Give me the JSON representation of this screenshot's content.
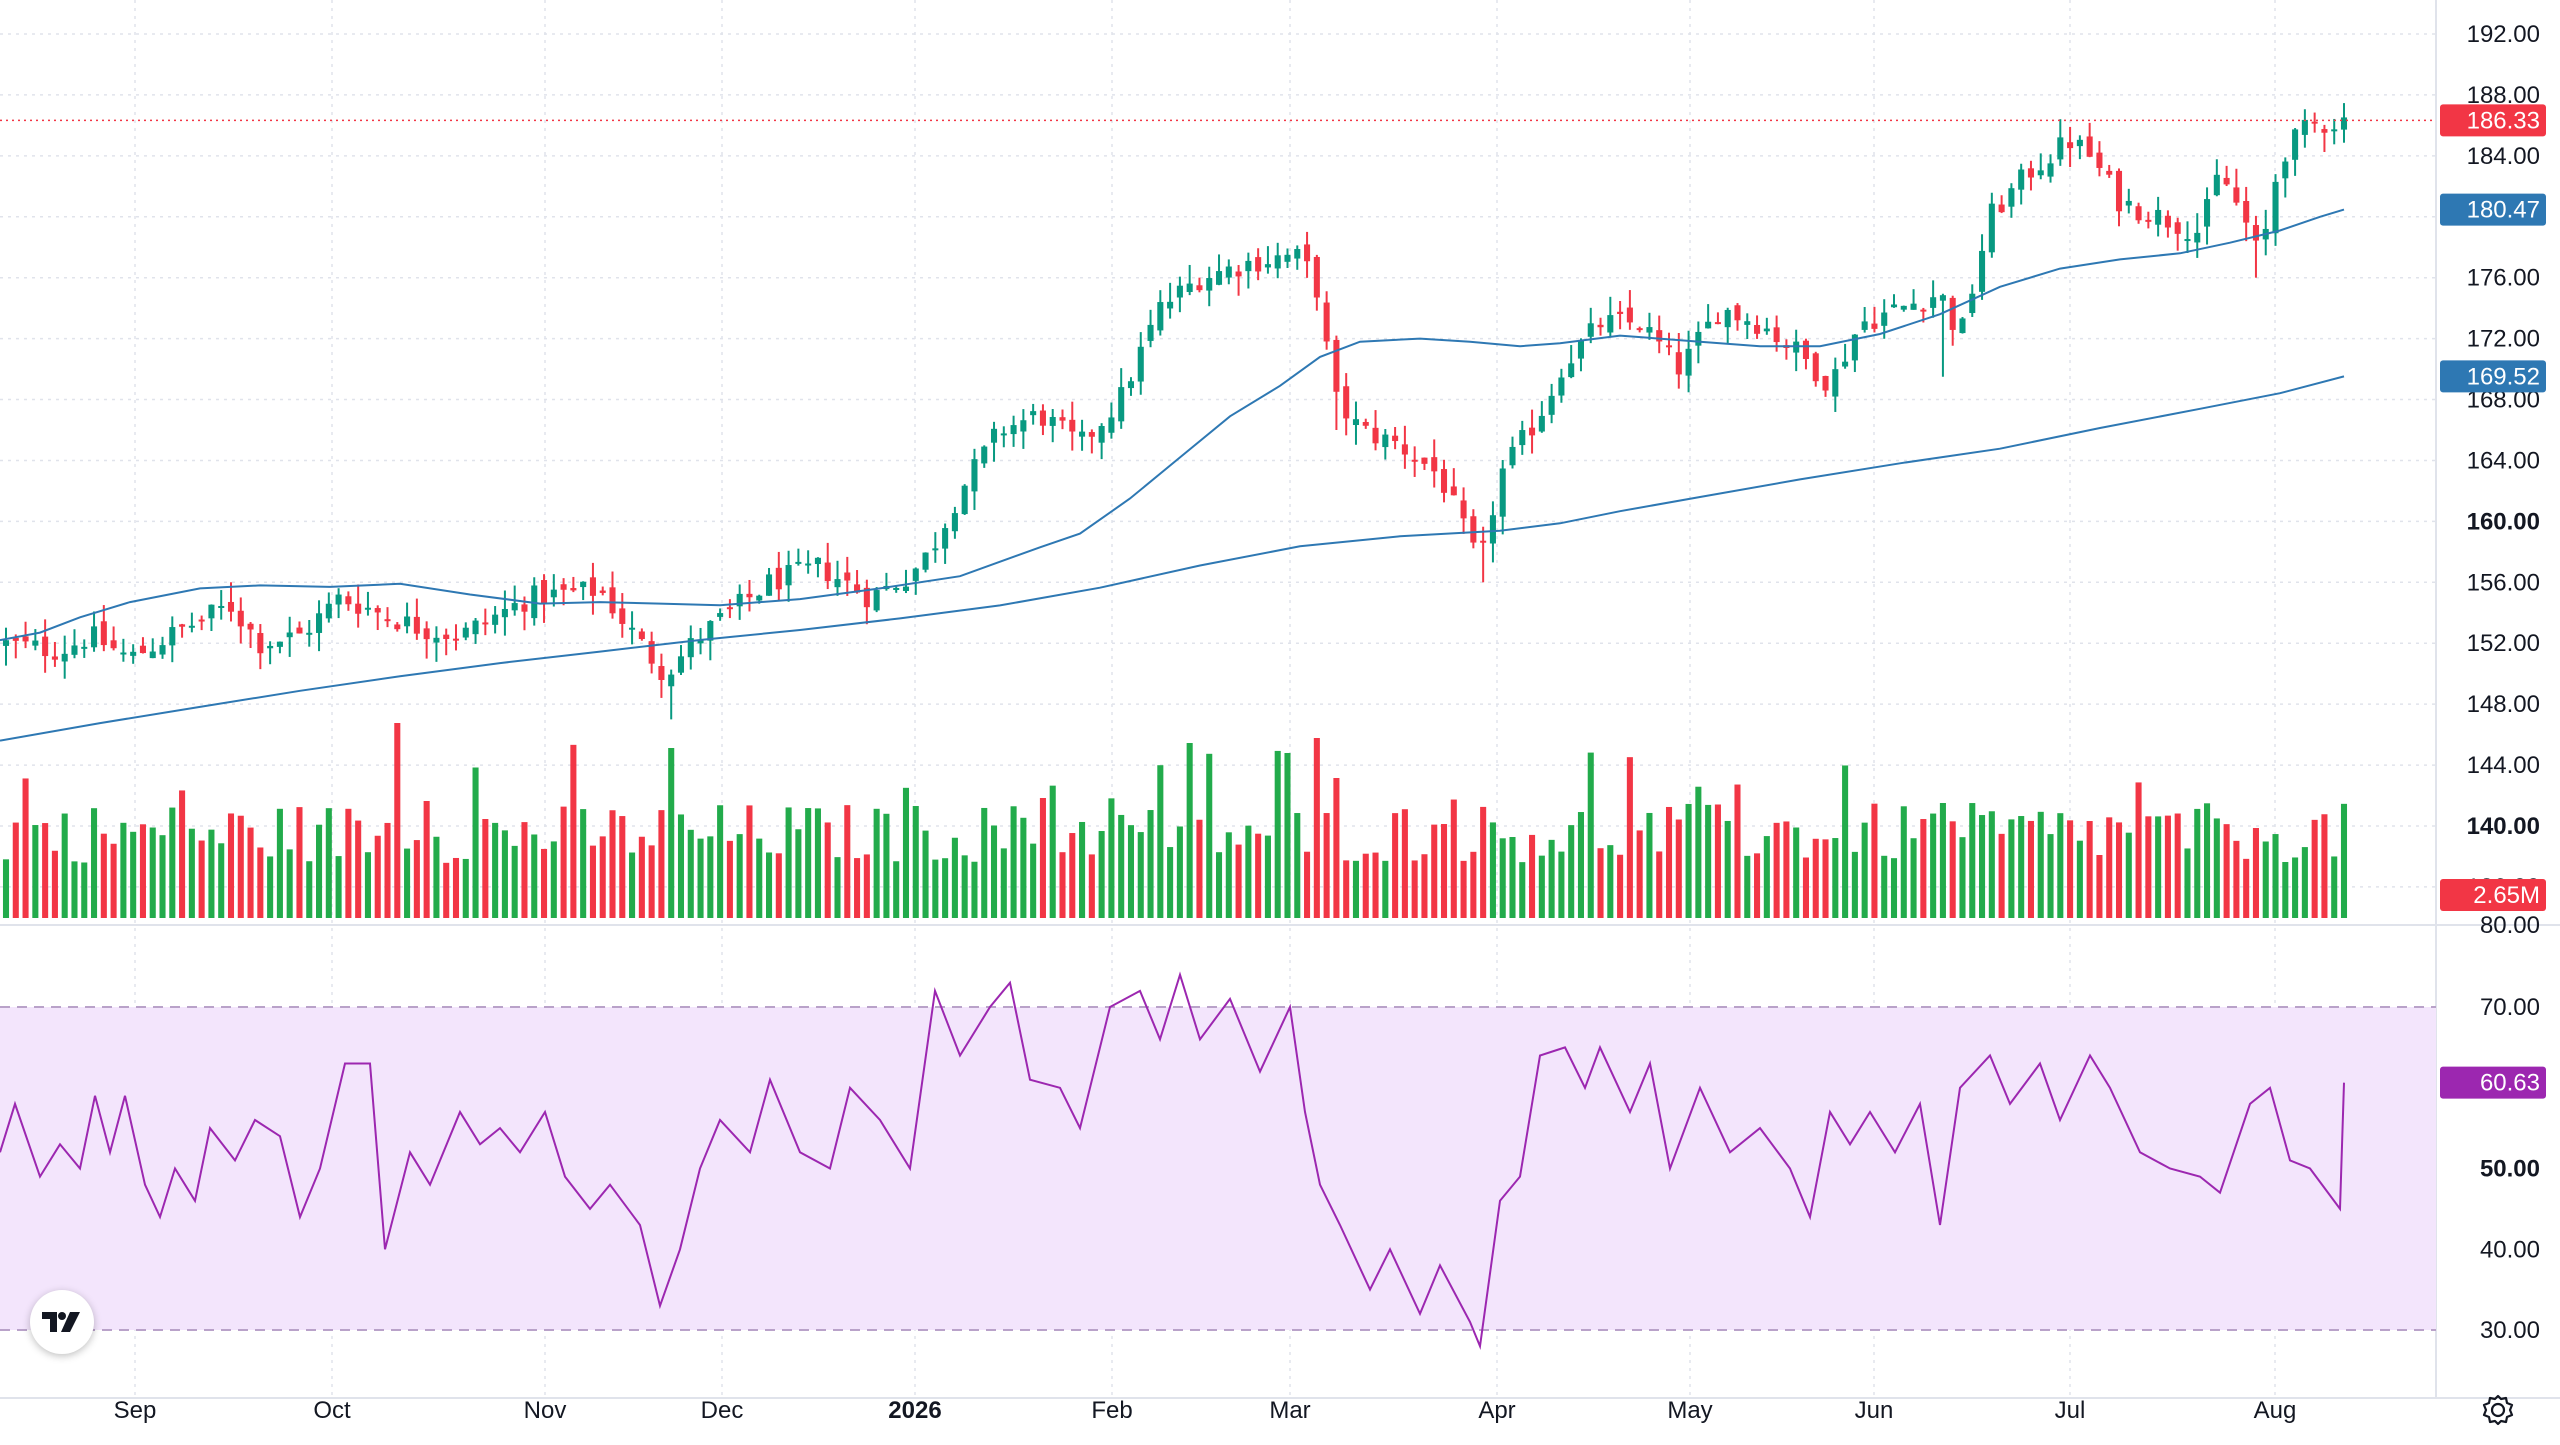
{
  "chart_data": {
    "type": "candlestick",
    "price_axis": {
      "ylim": [
        79.0,
        194.0
      ],
      "ticks": [
        {
          "label": "192.00",
          "value": 192,
          "bold": false
        },
        {
          "label": "188.00",
          "value": 188,
          "bold": false
        },
        {
          "label": "184.00",
          "value": 184,
          "bold": false
        },
        {
          "label": "180.00",
          "value": 180,
          "bold": false
        },
        {
          "label": "176.00",
          "value": 176,
          "bold": false
        },
        {
          "label": "172.00",
          "value": 172,
          "bold": false
        },
        {
          "label": "168.00",
          "value": 168,
          "bold": false
        },
        {
          "label": "164.00",
          "value": 164,
          "bold": false
        },
        {
          "label": "160.00",
          "value": 160,
          "bold": true
        },
        {
          "label": "156.00",
          "value": 156,
          "bold": false
        },
        {
          "label": "152.00",
          "value": 152,
          "bold": false
        },
        {
          "label": "148.00",
          "value": 148,
          "bold": false
        },
        {
          "label": "144.00",
          "value": 144,
          "bold": false
        },
        {
          "label": "140.00",
          "value": 140,
          "bold": true
        },
        {
          "label": "136.00",
          "value": 136,
          "bold": false
        },
        {
          "label": "80.00",
          "value": 80.0,
          "bold": false
        }
      ]
    },
    "last_price": {
      "label": "186.33",
      "value": 186.33,
      "color": "#f23645"
    },
    "sma_50": {
      "label": "180.47",
      "color": "#2e78b3",
      "points": [
        [
          0,
          157.0
        ],
        [
          20,
          157.6
        ],
        [
          40,
          158.3
        ],
        [
          60,
          158.8
        ],
        [
          62,
          156.8
        ],
        [
          80,
          156.8
        ],
        [
          90,
          157.0
        ],
        [
          100,
          157.5
        ],
        [
          120,
          158.1
        ],
        [
          140,
          158.8
        ],
        [
          180,
          161.6
        ],
        [
          220,
          165.2
        ],
        [
          240,
          167.6
        ],
        [
          260,
          169.0
        ],
        [
          280,
          169.3
        ],
        [
          300,
          169.7
        ],
        [
          320,
          170.0
        ],
        [
          340,
          170.5
        ],
        [
          360,
          171.2
        ],
        [
          380,
          171.8
        ],
        [
          400,
          172.7
        ],
        [
          420,
          175.0
        ],
        [
          440,
          175.9
        ],
        [
          460,
          177.0
        ],
        [
          480,
          178.2
        ],
        [
          500,
          179.0
        ],
        [
          520,
          180.0
        ],
        [
          540,
          180.6
        ],
        [
          550,
          180.8
        ]
      ],
      "x_start_frac": 0.0
    },
    "sma_200": {
      "label": "169.52",
      "color": "#2e78b3"
    },
    "volume": {
      "label": "2.65M",
      "color": "#f23645"
    },
    "rsi": {
      "label": "60.63",
      "color": "#9c27b0",
      "band_upper": 70,
      "band_lower": 30,
      "ticks": [
        {
          "label": "70.00",
          "value": 70,
          "bold": false
        },
        {
          "label": "50.00",
          "value": 50,
          "bold": true
        },
        {
          "label": "40.00",
          "value": 40,
          "bold": false
        },
        {
          "label": "30.00",
          "value": 30,
          "bold": false
        }
      ],
      "ylim": [
        26.5,
        74.5
      ]
    },
    "time_axis": [
      {
        "label": "Sep",
        "bold": false
      },
      {
        "label": "Oct",
        "bold": false
      },
      {
        "label": "Nov",
        "bold": false
      },
      {
        "label": "Dec",
        "bold": false
      },
      {
        "label": "2026",
        "bold": true
      },
      {
        "label": "Feb",
        "bold": false
      },
      {
        "label": "Mar",
        "bold": false
      },
      {
        "label": "Apr",
        "bold": false
      },
      {
        "label": "May",
        "bold": false
      },
      {
        "label": "Jun",
        "bold": false
      },
      {
        "label": "Jul",
        "bold": false
      },
      {
        "label": "Aug",
        "bold": false
      }
    ],
    "colors": {
      "up": "#089981",
      "down": "#f23645",
      "vol_up": "#22ab4b",
      "vol_down": "#f23645",
      "grid": "#e0e3eb",
      "rsi_bg": "#f3e5fc"
    },
    "candles_ohlc": "see script (keyframed)"
  }
}
